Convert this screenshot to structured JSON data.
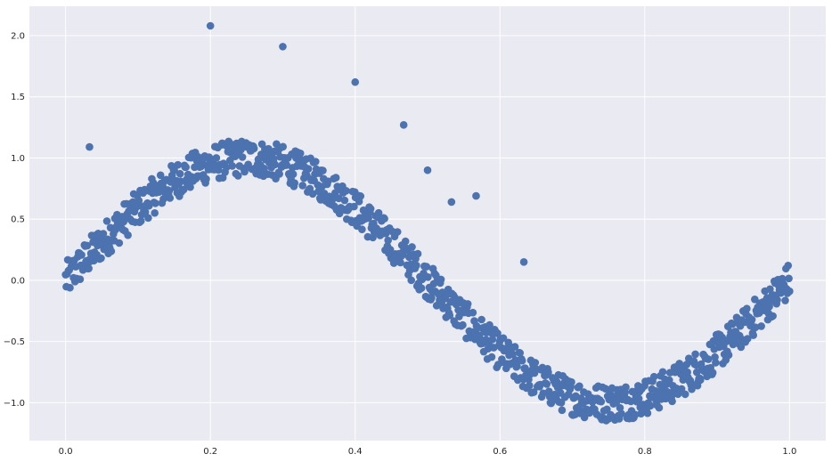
{
  "chart_data": {
    "type": "scatter",
    "title": "",
    "xlabel": "",
    "ylabel": "",
    "xlim": [
      -0.05,
      1.05
    ],
    "ylim": [
      -1.31,
      2.24
    ],
    "grid": true,
    "legend": "none",
    "colors": {
      "background": "#eaeaf2",
      "grid": "#ffffff",
      "point": "#4c72b0"
    },
    "xticks": [
      {
        "value": 0.0,
        "label": "0.0"
      },
      {
        "value": 0.2,
        "label": "0.2"
      },
      {
        "value": 0.4,
        "label": "0.4"
      },
      {
        "value": 0.6,
        "label": "0.6"
      },
      {
        "value": 0.8,
        "label": "0.8"
      },
      {
        "value": 1.0,
        "label": "1.0"
      }
    ],
    "yticks": [
      {
        "value": -1.0,
        "label": "−1.0"
      },
      {
        "value": -0.5,
        "label": "−0.5"
      },
      {
        "value": 0.0,
        "label": "0.0"
      },
      {
        "value": 0.5,
        "label": "0.5"
      },
      {
        "value": 1.0,
        "label": "1.0"
      },
      {
        "value": 1.5,
        "label": "1.5"
      },
      {
        "value": 2.0,
        "label": "2.0"
      }
    ],
    "main_trend": {
      "description": "about 1000 points along y = sin(2πx) for x from 0 to 1 with noise of about ±0.15",
      "x_range": [
        0,
        1
      ],
      "amplitude": 1.0,
      "noise": 0.15,
      "count": 1000
    },
    "outliers": [
      {
        "x": 0.033,
        "y": 1.09
      },
      {
        "x": 0.2,
        "y": 2.08
      },
      {
        "x": 0.3,
        "y": 1.91
      },
      {
        "x": 0.4,
        "y": 1.62
      },
      {
        "x": 0.467,
        "y": 1.27
      },
      {
        "x": 0.5,
        "y": 0.9
      },
      {
        "x": 0.533,
        "y": 0.64
      },
      {
        "x": 0.567,
        "y": 0.69
      },
      {
        "x": 0.633,
        "y": 0.15
      }
    ]
  }
}
